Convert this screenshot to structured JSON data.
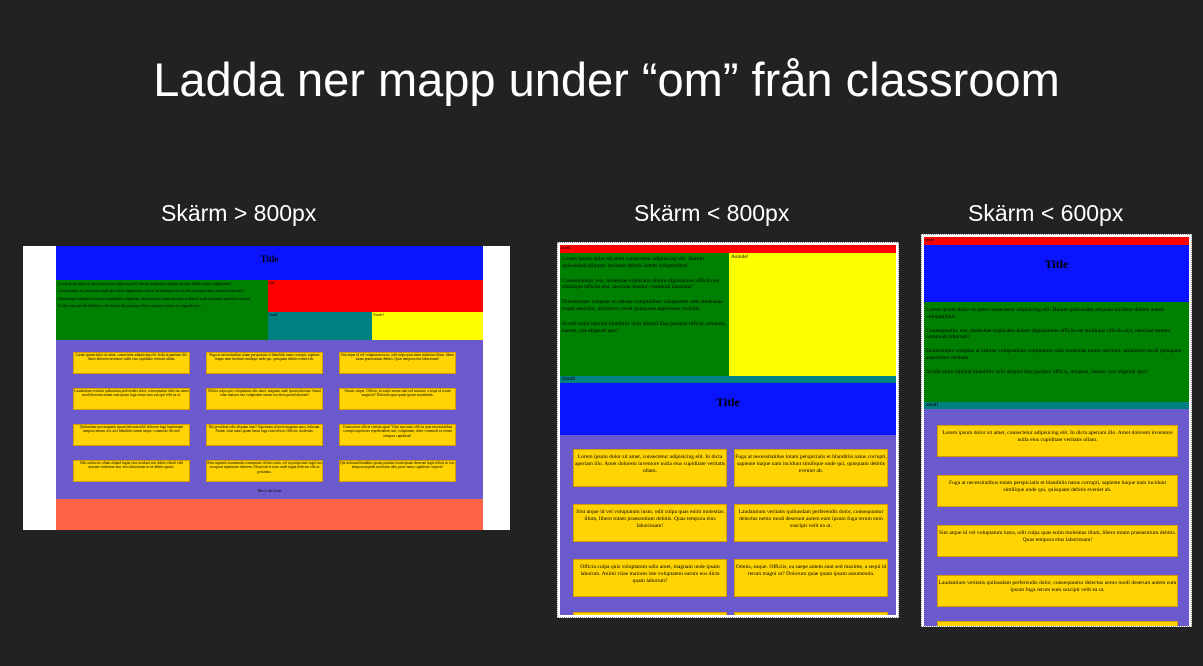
{
  "title": "Ladda ner mapp under “om” från classroom",
  "labels": {
    "large": "Skärm > 800px",
    "medium": "Skärm < 800px",
    "small": "Skärm < 600px"
  },
  "mock": {
    "page_title": "Title",
    "labels": {
      "header": "header",
      "nav": "Nav",
      "aside": "Asisde!",
      "aside_medium": "Asinde!",
      "small": "Small",
      "small_lower": "small"
    },
    "footer": "This is the footer",
    "paragraphs": [
      "Lorem ipsum dolor sit amet consectetur adipisicing elit. Harum quibusdam aliquam incidunt debitis autem voluptatibus!",
      "Consequuntur, eos, molestiae explicabo dolore dignissimos officiis est similique officiis nisi, nesciunt tenetur commodi laborum?",
      "Doloremque voluptas at ratione voluptatibus voluptatum odio molestias totam nesciunt, architecto modi quisquam asperiores veritatis.",
      "Id odit enim repellat blanditiis velit aliquid illas pariatur officia, tempora, harum, nos eligendi quo?"
    ],
    "cards": [
      "Lorem ipsum dolor sit amet, consectetur adipisicing elit. In dicta aperiam illo. Amet dolorem inventore nulla eius cupiditate veritatis ullam.",
      "Fuga at necessitatibus totam perspiciatis et blanditiis natus corrupti, sapiente itaque nam incidunt similique unde qui, quisquam debitis eveniet ab.",
      "Sint atque id vel voluptatum iusto, odit culpa quas enim molestias illum, libero totam praesentium debitis. Quas tempora eius laboriosam!",
      "Laudantium veritatis quibusdam perferendis dolor, consequuntur delectus nemo modi deserunt autem eum ipsum fuga rerum eum suscipit velit ea ut.",
      "Officia culpa quis voluptatum odio amet, magnam unde ipsam laborum. Animi vitae maiores iste voluptatem earum eos dicta quam laborum?",
      "Omnis, eaque. Officiis, ea saepe autem sunt sed maxime, a sequi id rerum magni ut? Dolorum quae quam ipsam assumenda.",
      "Quibusdam quo magnam ipsum laborum nihil dolorem fuga laudantium tempora harum, eos ad a blanditiis omnis neque, commodo illo unt!",
      "Illo provident odio aliquam eum? Aspernatur placeat magnam quos, laborum. Animi, vitae natus ipsam basus fuga eum officia. Officiis, molestias.",
      "Consectetur officia veniam quae! Vitae non iusto officiis quia necessitatibus corrupti asperiores reprehenderit sint, voluptatem, dolor commodi ex rerum tempora cupiditate!",
      "Odit architecto ullam aliquid fugiat esse incidunt sint dolore eleniti velit maxime molestiae non, eius laboriosam in ea debitis quasis.",
      "Rem sapiente assumenda consequatur officiis enim, vel ut perspiciatis fugit sint excepturi aspernatur dolorem. Obcaecati et iusto unde fugiat delectus officia possimus.",
      "Qui dolorum blanditiis ipsum pariatur totam ipsam deserunt fugit officia eo eos, tempora impedit molestias odio porro natus cupiditate corporis!"
    ]
  },
  "colors": {
    "blue": "#0a14ff",
    "red": "#ff0000",
    "green": "#008000",
    "teal": "#008080",
    "yellow": "#ffff00",
    "purple": "#6a5acd",
    "card": "#ffd400",
    "footer": "#ff6347"
  }
}
